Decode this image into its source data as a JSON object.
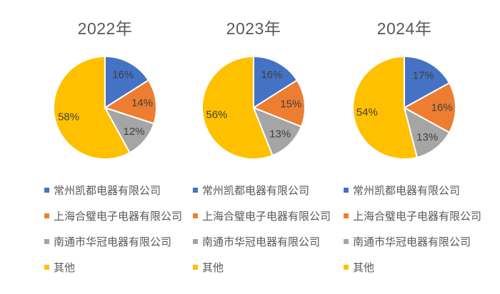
{
  "styles": {
    "background": "#FFFFFF",
    "title_color": "#595959",
    "legend_text_color": "#595959",
    "data_label_color": "#404040",
    "slice_colors": [
      "#4472C4",
      "#ED7D31",
      "#A5A5A5",
      "#FFC000"
    ],
    "slice_border_color": "#FFFFFF"
  },
  "legend_icon_names": [
    "blue-square-icon",
    "orange-square-icon",
    "gray-square-icon",
    "yellow-square-icon"
  ],
  "chart_data": [
    {
      "type": "pie",
      "title": "2022年",
      "categories": [
        "常州凯都电器有限公司",
        "上海合璧电子电器有限公司",
        "南通市华冠电器有限公司",
        "其他"
      ],
      "values": [
        16,
        14,
        12,
        58
      ],
      "labels": [
        "16%",
        "14%",
        "12%",
        "58%"
      ],
      "colors": [
        "#4472C4",
        "#ED7D31",
        "#A5A5A5",
        "#FFC000"
      ],
      "start_angle": 0,
      "direction": "clockwise",
      "legend_position": "bottom"
    },
    {
      "type": "pie",
      "title": "2023年",
      "categories": [
        "常州凯都电器有限公司",
        "上海合璧电子电器有限公司",
        "南通市华冠电器有限公司",
        "其他"
      ],
      "values": [
        16,
        15,
        13,
        56
      ],
      "labels": [
        "16%",
        "15%",
        "13%",
        "56%"
      ],
      "colors": [
        "#4472C4",
        "#ED7D31",
        "#A5A5A5",
        "#FFC000"
      ],
      "start_angle": 0,
      "direction": "clockwise",
      "legend_position": "bottom"
    },
    {
      "type": "pie",
      "title": "2024年",
      "categories": [
        "常州凯都电器有限公司",
        "上海合璧电子电器有限公司",
        "南通市华冠电器有限公司",
        "其他"
      ],
      "values": [
        17,
        16,
        13,
        54
      ],
      "labels": [
        "17%",
        "16%",
        "13%",
        "54%"
      ],
      "colors": [
        "#4472C4",
        "#ED7D31",
        "#A5A5A5",
        "#FFC000"
      ],
      "start_angle": 0,
      "direction": "clockwise",
      "legend_position": "bottom"
    }
  ]
}
